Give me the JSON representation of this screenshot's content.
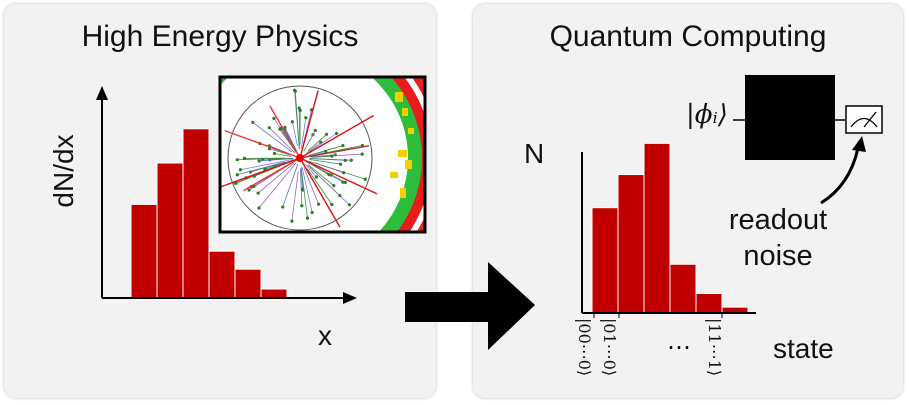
{
  "hep": {
    "title": "High Energy Physics",
    "ylabel": "dN/dx",
    "xlabel": "x"
  },
  "qc": {
    "title": "Quantum Computing",
    "ylabel": "N",
    "xlabel": "state",
    "input_state": "|ϕᵢ⟩",
    "readout_label_line1": "readout",
    "readout_label_line2": "noise",
    "tick_labels": [
      "|00⋯0⟩",
      "|01⋯0⟩",
      "|11⋯1⟩"
    ],
    "ellipsis": "⋯"
  },
  "colors": {
    "bar": "#c00000",
    "panel": "#f2f2f2",
    "arrow": "#000000"
  },
  "chart_data": [
    {
      "type": "bar",
      "title": "High Energy Physics",
      "xlabel": "x",
      "ylabel": "dN/dx",
      "values": [
        0.52,
        0.75,
        0.94,
        0.26,
        0.16,
        0.05
      ]
    },
    {
      "type": "bar",
      "title": "Quantum Computing",
      "xlabel": "state",
      "ylabel": "N",
      "categories": [
        "|00⋯0⟩",
        "|01⋯0⟩",
        "",
        "",
        "",
        "|11⋯1⟩"
      ],
      "values": [
        0.54,
        0.71,
        0.87,
        0.25,
        0.1,
        0.03
      ]
    }
  ]
}
